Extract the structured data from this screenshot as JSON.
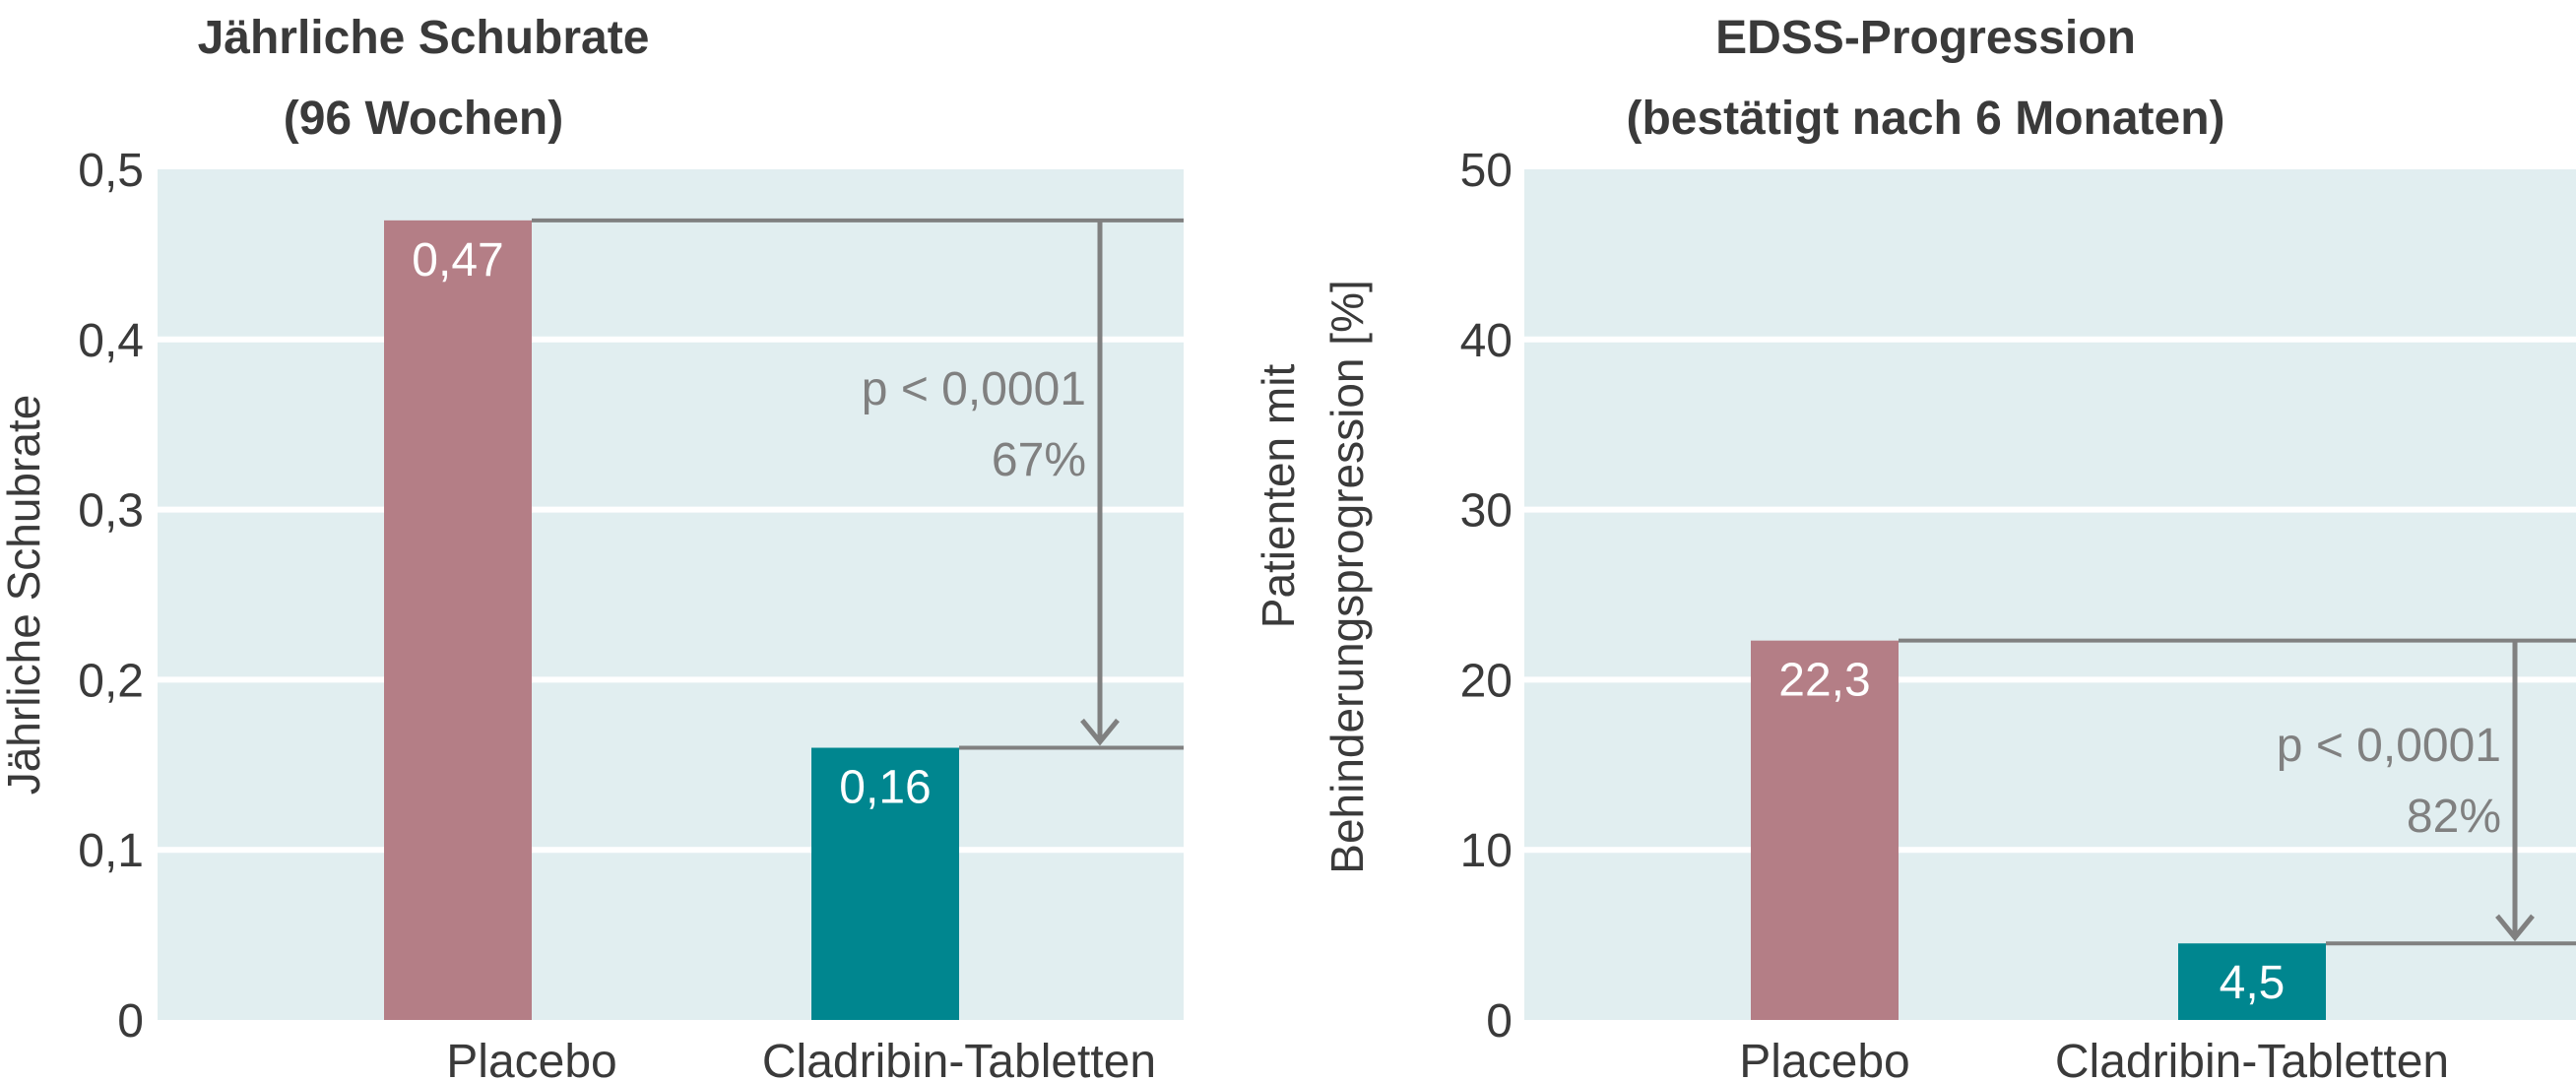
{
  "colors": {
    "panel_bg": "#e1eef0",
    "grid": "#ffffff",
    "placebo": "#b47e86",
    "cladribin": "#00868f",
    "annotation": "#808080",
    "text": "#3a3a3a"
  },
  "chart_data": [
    {
      "type": "bar",
      "title": "Jährliche Schubrate",
      "subtitle": "(96 Wochen)",
      "xlabel": "",
      "ylabel": "Jährliche Schubrate",
      "ylim": [
        0,
        0.5
      ],
      "yticks": [
        "0",
        "0,1",
        "0,2",
        "0,3",
        "0,4",
        "0,5"
      ],
      "grid": true,
      "categories": [
        "Placebo",
        "Cladribin-Tabletten"
      ],
      "values": [
        0.47,
        0.16
      ],
      "value_labels": [
        "0,47",
        "0,16"
      ],
      "annotation": {
        "p_value": "p < 0,0001",
        "reduction": "67%"
      }
    },
    {
      "type": "bar",
      "title": "EDSS-Progression",
      "subtitle": "(bestätigt nach 6 Monaten)",
      "xlabel": "",
      "ylabel_line1": "Patienten mit",
      "ylabel_line2": "Behinderungsprogression [%]",
      "ylim": [
        0,
        50
      ],
      "yticks": [
        "0",
        "10",
        "20",
        "30",
        "40",
        "50"
      ],
      "grid": true,
      "categories": [
        "Placebo",
        "Cladribin-Tabletten"
      ],
      "values": [
        22.3,
        4.5
      ],
      "value_labels": [
        "22,3",
        "4,5"
      ],
      "annotation": {
        "p_value": "p < 0,0001",
        "reduction": "82%"
      }
    }
  ]
}
